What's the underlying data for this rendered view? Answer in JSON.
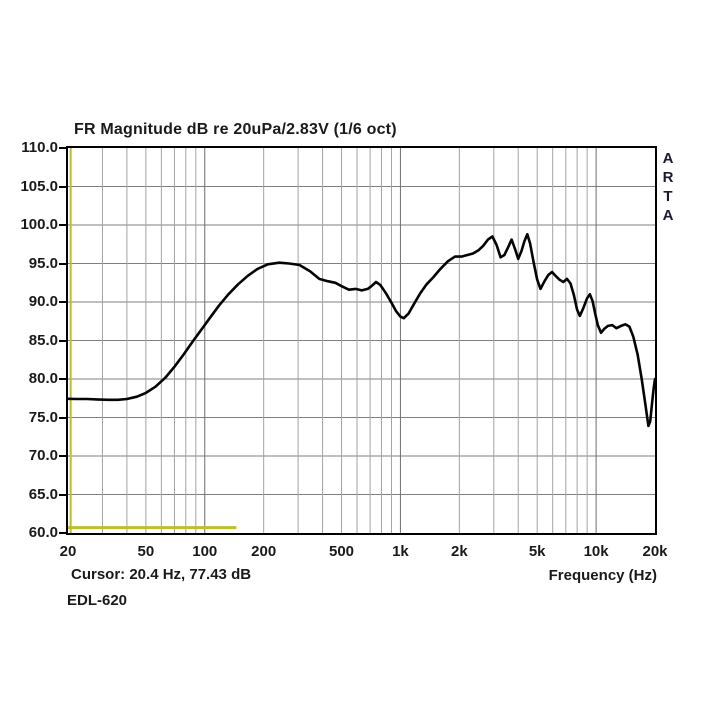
{
  "chart_data": {
    "type": "line",
    "title": "FR Magnitude dB re 20uPa/2.83V (1/6 oct)",
    "xlabel": "Frequency (Hz)",
    "ylabel": "",
    "x_scale": "log",
    "xlim": [
      20,
      20000
    ],
    "ylim": [
      60,
      110
    ],
    "grid": true,
    "legend_position": "none",
    "y_ticks": [
      110,
      105,
      100,
      95,
      90,
      85,
      80,
      75,
      70,
      65,
      60
    ],
    "y_tick_decimals": 1,
    "x_ticks": [
      {
        "f": 20,
        "label": "20"
      },
      {
        "f": 50,
        "label": "50"
      },
      {
        "f": 100,
        "label": "100"
      },
      {
        "f": 200,
        "label": "200"
      },
      {
        "f": 500,
        "label": "500"
      },
      {
        "f": 1000,
        "label": "1k"
      },
      {
        "f": 2000,
        "label": "2k"
      },
      {
        "f": 5000,
        "label": "5k"
      },
      {
        "f": 10000,
        "label": "10k"
      },
      {
        "f": 20000,
        "label": "20k"
      }
    ],
    "x_gridlines": [
      30,
      40,
      50,
      60,
      70,
      80,
      90,
      100,
      200,
      300,
      400,
      500,
      600,
      700,
      800,
      900,
      1000,
      2000,
      3000,
      4000,
      5000,
      6000,
      7000,
      8000,
      9000,
      10000
    ],
    "decade_gridlines": [
      100,
      1000,
      10000
    ],
    "series": [
      {
        "name": "EDL-620",
        "color": "#050505",
        "points": [
          [
            20,
            77.43
          ],
          [
            22,
            77.4
          ],
          [
            25,
            77.4
          ],
          [
            28,
            77.35
          ],
          [
            32,
            77.3
          ],
          [
            36,
            77.3
          ],
          [
            40,
            77.4
          ],
          [
            45,
            77.7
          ],
          [
            50,
            78.2
          ],
          [
            56,
            79.0
          ],
          [
            63,
            80.2
          ],
          [
            70,
            81.6
          ],
          [
            78,
            83.2
          ],
          [
            87,
            84.9
          ],
          [
            96,
            86.4
          ],
          [
            106,
            87.9
          ],
          [
            118,
            89.5
          ],
          [
            132,
            91.0
          ],
          [
            148,
            92.3
          ],
          [
            166,
            93.4
          ],
          [
            186,
            94.3
          ],
          [
            210,
            94.9
          ],
          [
            240,
            95.1
          ],
          [
            270,
            95.0
          ],
          [
            305,
            94.8
          ],
          [
            345,
            94.0
          ],
          [
            385,
            93.0
          ],
          [
            425,
            92.7
          ],
          [
            465,
            92.5
          ],
          [
            505,
            92.0
          ],
          [
            545,
            91.6
          ],
          [
            590,
            91.7
          ],
          [
            635,
            91.5
          ],
          [
            680,
            91.7
          ],
          [
            715,
            92.1
          ],
          [
            750,
            92.6
          ],
          [
            790,
            92.2
          ],
          [
            845,
            91.1
          ],
          [
            900,
            89.9
          ],
          [
            950,
            88.8
          ],
          [
            1000,
            88.1
          ],
          [
            1040,
            87.9
          ],
          [
            1100,
            88.5
          ],
          [
            1170,
            89.7
          ],
          [
            1260,
            91.1
          ],
          [
            1360,
            92.3
          ],
          [
            1470,
            93.2
          ],
          [
            1600,
            94.3
          ],
          [
            1750,
            95.3
          ],
          [
            1900,
            95.9
          ],
          [
            2050,
            95.9
          ],
          [
            2200,
            96.1
          ],
          [
            2350,
            96.3
          ],
          [
            2500,
            96.7
          ],
          [
            2650,
            97.3
          ],
          [
            2800,
            98.1
          ],
          [
            2950,
            98.5
          ],
          [
            3100,
            97.4
          ],
          [
            3250,
            95.8
          ],
          [
            3400,
            96.1
          ],
          [
            3550,
            97.1
          ],
          [
            3700,
            98.1
          ],
          [
            3850,
            96.9
          ],
          [
            4000,
            95.6
          ],
          [
            4150,
            96.6
          ],
          [
            4300,
            97.9
          ],
          [
            4450,
            98.8
          ],
          [
            4600,
            97.6
          ],
          [
            4800,
            95.1
          ],
          [
            5000,
            92.9
          ],
          [
            5200,
            91.7
          ],
          [
            5450,
            92.7
          ],
          [
            5700,
            93.5
          ],
          [
            5950,
            93.9
          ],
          [
            6200,
            93.4
          ],
          [
            6500,
            92.9
          ],
          [
            6800,
            92.6
          ],
          [
            7100,
            93.0
          ],
          [
            7400,
            92.4
          ],
          [
            7700,
            90.9
          ],
          [
            8000,
            89.0
          ],
          [
            8250,
            88.2
          ],
          [
            8600,
            89.2
          ],
          [
            9000,
            90.5
          ],
          [
            9300,
            91.0
          ],
          [
            9600,
            90.1
          ],
          [
            9900,
            88.5
          ],
          [
            10200,
            87.0
          ],
          [
            10600,
            86.0
          ],
          [
            11000,
            86.5
          ],
          [
            11500,
            86.9
          ],
          [
            12100,
            87.0
          ],
          [
            12700,
            86.6
          ],
          [
            13400,
            86.9
          ],
          [
            14100,
            87.1
          ],
          [
            14800,
            86.8
          ],
          [
            15500,
            85.5
          ],
          [
            16300,
            83.2
          ],
          [
            17100,
            80.0
          ],
          [
            17900,
            76.5
          ],
          [
            18500,
            73.9
          ],
          [
            18900,
            74.5
          ],
          [
            19300,
            76.8
          ],
          [
            19700,
            78.8
          ],
          [
            20000,
            80.0
          ]
        ]
      }
    ],
    "cursor": {
      "freq_hz": 20.4,
      "value_db": 77.43
    },
    "marker_line": {
      "db": 60.7,
      "from_hz": 20,
      "to_hz": 145
    }
  },
  "watermark": {
    "letters": [
      "A",
      "R",
      "T",
      "A"
    ]
  },
  "footer": {
    "cursor_readout": "Cursor: 20.4 Hz, 77.43 dB",
    "file_label": "EDL-620"
  },
  "colors": {
    "curve": "#050505",
    "grid_h": "#7f7f7f",
    "grid_v": "#a3a3a3",
    "grid_decade": "#6e6e6e",
    "cursor_yellow": "#bdbd2f",
    "border": "#000000",
    "text": "#1a1a1a",
    "watermark_text": "#1b1b30"
  }
}
